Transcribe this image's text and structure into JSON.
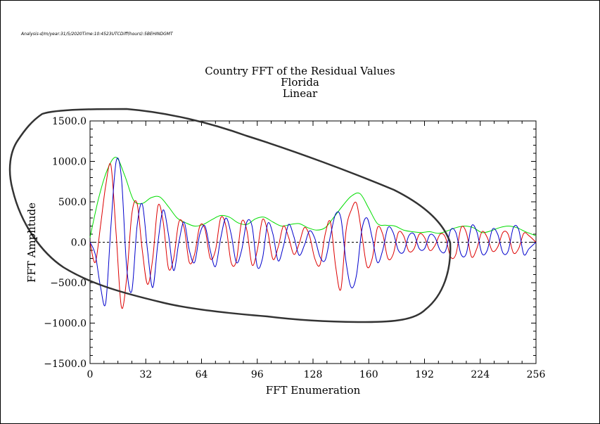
{
  "header": {
    "meta_text": "Analysis-d/m/year:31/5/2020Time:10:4523UTCDiff(hours):5BEHINDGMT"
  },
  "chart_data": {
    "type": "line",
    "title": "Country FFT of the Residual Values",
    "subtitle_lines": [
      "Florida",
      "Linear"
    ],
    "xlabel": "FFT Enumeration",
    "ylabel": "FFT Amplitude",
    "xlim": [
      0,
      256
    ],
    "ylim": [
      -1500,
      1500
    ],
    "xticks": [
      0,
      32,
      64,
      96,
      128,
      160,
      192,
      224,
      256
    ],
    "yticks": [
      -1500,
      -1000,
      -500,
      0,
      500,
      1000,
      1500
    ],
    "ytick_labels": [
      "−1500.0",
      "−1000.0",
      "−500.0",
      "0.0",
      "500.0",
      "1000.0",
      "1500.0"
    ],
    "grid": false,
    "zero_line": {
      "value": 0,
      "color": "#000000",
      "style": "dashed"
    },
    "series": [
      {
        "color": "#00dd00",
        "x": [
          0,
          5,
          10,
          15,
          20,
          25,
          30,
          35,
          40,
          45,
          50,
          55,
          60,
          65,
          70,
          75,
          80,
          85,
          90,
          95,
          100,
          105,
          110,
          115,
          120,
          125,
          130,
          135,
          140,
          145,
          150,
          155,
          160,
          165,
          170,
          175,
          180,
          185,
          190,
          195,
          200,
          205,
          210,
          215,
          220,
          225,
          230,
          235,
          240,
          245,
          250,
          256
        ],
        "values": [
          60,
          550,
          900,
          1050,
          820,
          520,
          480,
          550,
          560,
          440,
          300,
          240,
          200,
          220,
          280,
          330,
          310,
          240,
          220,
          290,
          310,
          250,
          200,
          220,
          230,
          180,
          150,
          180,
          310,
          450,
          570,
          600,
          420,
          230,
          210,
          200,
          150,
          130,
          120,
          130,
          110,
          140,
          180,
          200,
          180,
          120,
          140,
          180,
          200,
          180,
          130,
          80
        ]
      },
      {
        "color": "#dd0000",
        "x": [
          0,
          3,
          6,
          9,
          12,
          15,
          18,
          21,
          24,
          27,
          30,
          33,
          36,
          39,
          42,
          45,
          48,
          51,
          54,
          57,
          60,
          63,
          66,
          69,
          72,
          75,
          78,
          81,
          84,
          87,
          90,
          93,
          96,
          99,
          102,
          105,
          108,
          111,
          114,
          117,
          120,
          123,
          126,
          129,
          132,
          135,
          138,
          141,
          144,
          147,
          150,
          153,
          156,
          159,
          162,
          165,
          168,
          171,
          174,
          177,
          180,
          183,
          186,
          189,
          192,
          195,
          198,
          201,
          204,
          207,
          210,
          213,
          216,
          219,
          222,
          225,
          228,
          231,
          234,
          237,
          240,
          243,
          246,
          249,
          252,
          256
        ],
        "values": [
          0,
          -250,
          200,
          700,
          950,
          100,
          -800,
          -450,
          350,
          480,
          -100,
          -520,
          -200,
          450,
          250,
          -320,
          -200,
          250,
          180,
          -250,
          -150,
          200,
          160,
          -200,
          -100,
          300,
          200,
          -250,
          -230,
          250,
          150,
          -280,
          -100,
          280,
          130,
          -210,
          -60,
          200,
          60,
          -150,
          -20,
          180,
          80,
          -200,
          -280,
          100,
          250,
          -300,
          -580,
          150,
          400,
          480,
          100,
          -300,
          -200,
          180,
          100,
          -200,
          -150,
          120,
          80,
          -110,
          -80,
          100,
          60,
          -100,
          -40,
          100,
          60,
          -180,
          -150,
          180,
          120,
          -180,
          -80,
          130,
          60,
          -110,
          -60,
          120,
          100,
          -130,
          -80,
          110,
          80,
          0
        ]
      },
      {
        "color": "#0000cc",
        "x": [
          0,
          3,
          6,
          9,
          12,
          15,
          18,
          21,
          24,
          27,
          30,
          33,
          36,
          39,
          42,
          45,
          48,
          51,
          54,
          57,
          60,
          63,
          66,
          69,
          72,
          75,
          78,
          81,
          84,
          87,
          90,
          93,
          96,
          99,
          102,
          105,
          108,
          111,
          114,
          117,
          120,
          123,
          126,
          129,
          132,
          135,
          138,
          141,
          144,
          147,
          150,
          153,
          156,
          159,
          162,
          165,
          168,
          171,
          174,
          177,
          180,
          183,
          186,
          189,
          192,
          195,
          198,
          201,
          204,
          207,
          210,
          213,
          216,
          219,
          222,
          225,
          228,
          231,
          234,
          237,
          240,
          243,
          246,
          249,
          252,
          256
        ],
        "values": [
          0,
          -150,
          -550,
          -750,
          200,
          1000,
          800,
          -300,
          -600,
          200,
          470,
          -100,
          -560,
          0,
          400,
          100,
          -350,
          0,
          250,
          -100,
          -250,
          100,
          200,
          -100,
          -300,
          50,
          300,
          100,
          -250,
          -100,
          250,
          200,
          -300,
          -200,
          230,
          100,
          -230,
          -50,
          220,
          70,
          -160,
          -40,
          140,
          50,
          -180,
          -220,
          80,
          350,
          300,
          -250,
          -560,
          -400,
          150,
          300,
          50,
          -250,
          -100,
          180,
          120,
          -100,
          -120,
          80,
          100,
          -80,
          -80,
          90,
          60,
          -100,
          -110,
          150,
          120,
          -150,
          -140,
          200,
          130,
          -140,
          -100,
          160,
          100,
          -130,
          -110,
          180,
          160,
          -150,
          -80,
          0
        ]
      }
    ]
  }
}
